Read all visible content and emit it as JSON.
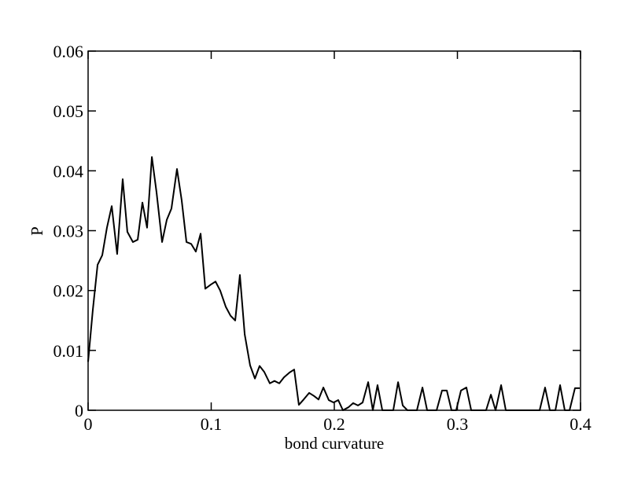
{
  "chart_data": {
    "type": "line",
    "x_label": "bond curvature",
    "y_label": "P",
    "xlim": [
      0,
      0.4
    ],
    "ylim": [
      0,
      0.06
    ],
    "xticks": [
      0,
      0.1,
      0.2,
      0.3,
      0.4
    ],
    "yticks": [
      0,
      0.01,
      0.02,
      0.03,
      0.04,
      0.05,
      0.06
    ],
    "grid": false,
    "color": "#000000",
    "x": [
      0,
      0.0038,
      0.0077,
      0.0115,
      0.0153,
      0.0192,
      0.0236,
      0.0281,
      0.0319,
      0.0364,
      0.0403,
      0.0441,
      0.0479,
      0.0518,
      0.0556,
      0.0601,
      0.0639,
      0.0677,
      0.0722,
      0.076,
      0.0799,
      0.0837,
      0.0875,
      0.0914,
      0.0952,
      0.0997,
      0.1035,
      0.1073,
      0.1118,
      0.1157,
      0.1195,
      0.1233,
      0.1272,
      0.1316,
      0.1355,
      0.1393,
      0.1431,
      0.1476,
      0.1514,
      0.1553,
      0.1591,
      0.1636,
      0.1674,
      0.1712,
      0.1751,
      0.1796,
      0.1834,
      0.1872,
      0.1911,
      0.1955,
      0.1994,
      0.2032,
      0.207,
      0.2115,
      0.2153,
      0.2192,
      0.223,
      0.2275,
      0.2313,
      0.2351,
      0.239,
      0.2479,
      0.2518,
      0.2556,
      0.2594,
      0.2671,
      0.2716,
      0.2754,
      0.2831,
      0.2875,
      0.2914,
      0.2952,
      0.299,
      0.3029,
      0.3073,
      0.3112,
      0.3233,
      0.3272,
      0.331,
      0.3355,
      0.3393,
      0.3668,
      0.3712,
      0.3751,
      0.3796,
      0.3834,
      0.3872,
      0.3911,
      0.3955,
      0.3994
    ],
    "values": [
      0.0081,
      0.0167,
      0.0243,
      0.0259,
      0.0305,
      0.0341,
      0.0261,
      0.0386,
      0.0298,
      0.0281,
      0.0285,
      0.0347,
      0.0305,
      0.0423,
      0.0364,
      0.0281,
      0.0318,
      0.0337,
      0.0403,
      0.0351,
      0.0281,
      0.0278,
      0.0265,
      0.0295,
      0.0203,
      0.021,
      0.0215,
      0.02,
      0.0173,
      0.0158,
      0.015,
      0.0226,
      0.0127,
      0.0075,
      0.0053,
      0.0074,
      0.0064,
      0.0045,
      0.0049,
      0.0045,
      0.0055,
      0.0063,
      0.0068,
      0.0009,
      0.0018,
      0.0029,
      0.0024,
      0.0018,
      0.0038,
      0.0017,
      0.0013,
      0.0017,
      0,
      0.0005,
      0.0012,
      0.0008,
      0.0013,
      0.0047,
      0,
      0.0042,
      0,
      0,
      0.0047,
      0.0008,
      0,
      0,
      0.0038,
      0,
      0,
      0.0033,
      0.0033,
      0,
      0,
      0.0033,
      0.0038,
      0,
      0,
      0.0026,
      0,
      0.0042,
      0,
      0,
      0.0038,
      0,
      0,
      0.0042,
      0,
      0,
      0.0037,
      0.0037
    ]
  }
}
